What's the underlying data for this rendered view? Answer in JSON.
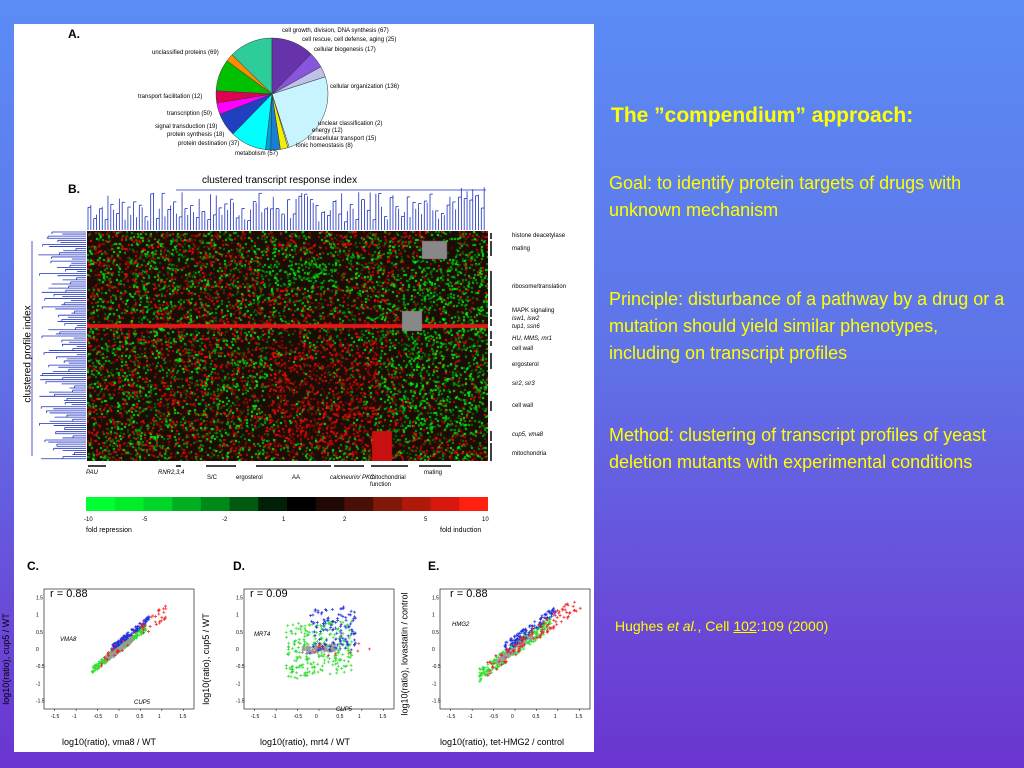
{
  "panelA": {
    "letter": "A.",
    "labels_left": [
      "unclassified proteins (69)",
      "transport facilitation (12)",
      "transcription (50)",
      "signal transduction (19)",
      "protein synthesis (18)",
      "protein destination (37)",
      "metabolism (57)"
    ],
    "labels_right": [
      "cell growth, division, DNA synthesis (67)",
      "cell rescue, cell defense, aging (25)",
      "cellular biogenesis (17)",
      "cellular organization (136)",
      "unclear classification (2)",
      "energy (12)",
      "intracellular transport (15)",
      "ionic homeostasis (8)"
    ],
    "pie_colors": [
      "#2ecc9b",
      "#6633aa",
      "#8855dd",
      "#c0c0e8",
      "#c8f4ff",
      "#ffffff",
      "#f0f000",
      "#1a7fd0",
      "#00a0e0",
      "#00ffff",
      "#2040c0",
      "#ff00ff",
      "#e00050",
      "#00c000",
      "#ff8c00",
      "#a00000",
      "#ffffff"
    ]
  },
  "panelB": {
    "letter": "B.",
    "top_label": "clustered transcript response index",
    "side_label": "clustered profile index",
    "right_labels": [
      "histone deacetylase",
      "mating",
      "ribosome/translation",
      "MAPK signaling",
      "isw1, isw2",
      "tup1, ssn6",
      "HU, MMS, rnr1",
      "cell wall",
      "ergosterol",
      "sir2, sir3",
      "cell wall",
      "cup5, vma8",
      "mitochondria"
    ],
    "bottom_labels": [
      "PAU",
      "RNR2,3,4",
      "S/C",
      "ergosterol",
      "AA",
      "calcineurin/ PKC",
      "mitochondrial function",
      "mating"
    ],
    "scale_ticks": [
      "-10",
      "-5",
      "-2",
      "1",
      "2",
      "5",
      "10"
    ],
    "scale_left": "fold repression",
    "scale_right": "fold induction"
  },
  "panelC": {
    "letter": "C.",
    "r": "r = 0.88",
    "ylabel": "log10(ratio), cup5 / WT",
    "xlabel": "log10(ratio), vma8 / WT",
    "ann1": "VMA8",
    "ann2": "CUP5"
  },
  "panelD": {
    "letter": "D.",
    "r": "r = 0.09",
    "ylabel": "log10(ratio), cup5 / WT",
    "xlabel": "log10(ratio), mrt4 / WT",
    "ann1": "MRT4",
    "ann2": "CUP5"
  },
  "panelE": {
    "letter": "E.",
    "r": "r = 0.88",
    "ylabel": "log10(ratio), lovastatin / control",
    "xlabel": "log10(ratio), tet-HMG2 / control",
    "ann1": "HMG2"
  },
  "scatter_ticks_x": [
    "-1.5",
    "-1",
    "-0.5",
    "0",
    "0.5",
    "1",
    "1.5"
  ],
  "scatter_ticks_y": [
    "1.5",
    "1",
    "0.5",
    "0",
    "-0.5",
    "-1",
    "-1.5"
  ],
  "slide": {
    "title": "The ”compendium” approach:",
    "goal": "Goal: to identify protein targets of drugs with unknown mechanism",
    "principle": "Principle: disturbance of a pathway by a drug or a mutation should yield similar phenotypes, including on transcript profiles",
    "method": "Method: clustering of transcript profiles of yeast deletion mutants with experimental conditions",
    "cite_authors": "Hughes ",
    "cite_etal": "et al.",
    "cite_journal": ", Cell ",
    "cite_volume": "102",
    "cite_pages": ":109 (2000)"
  }
}
